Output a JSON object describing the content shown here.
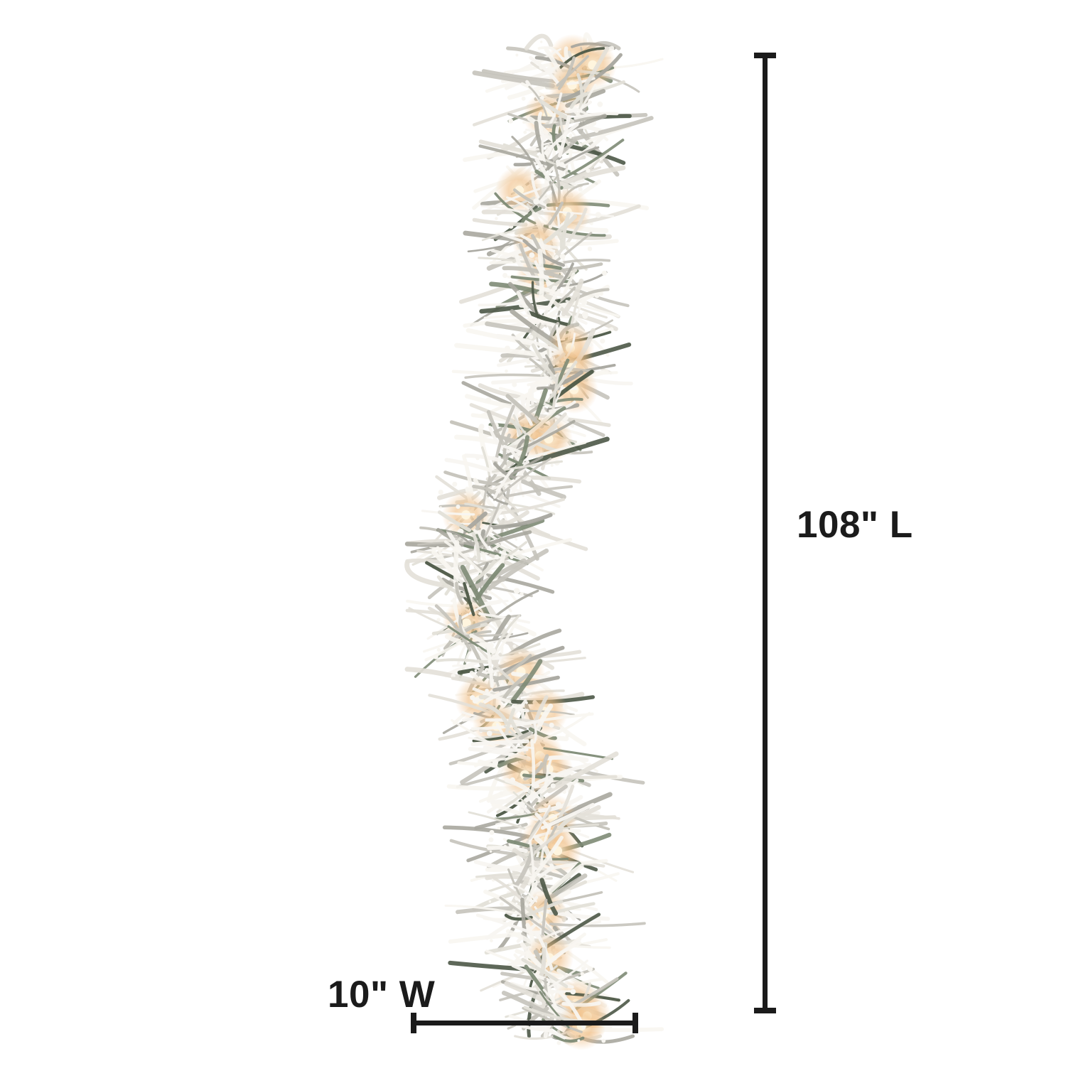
{
  "page": {
    "background": "#ffffff"
  },
  "product_image": {
    "description": "Snow-flocked artificial pine garland with lit warm clear lights, shown as a vertical column",
    "palette": {
      "background": "#ffffff",
      "flock_light": "#f8f6f1",
      "flock_mid": "#e3e0d8",
      "flock_shadow": "#c5c3bb",
      "flock_deep": "#a8a79f",
      "foliage_green": "#7e8b76",
      "foliage_dark": "#4d5847",
      "light_glow": "#efbc82",
      "light_core": "#fff5de"
    }
  },
  "dimensions": {
    "line_color": "#1b1b1b",
    "length_label": "108\" L",
    "width_label": "10\" W"
  }
}
